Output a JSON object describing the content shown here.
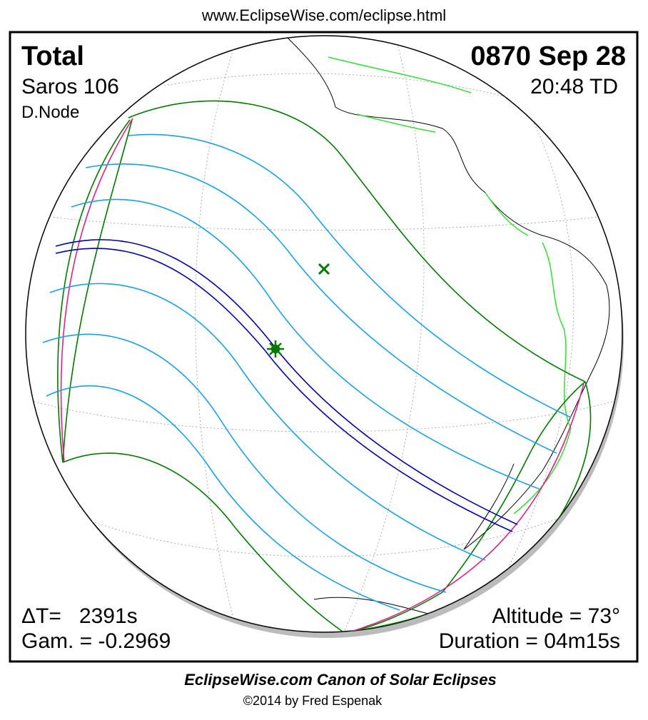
{
  "header": {
    "url": "www.EclipseWise.com/eclipse.html"
  },
  "map": {
    "eclipse_type": "Total",
    "date": "0870 Sep 28",
    "saros": "Saros 106",
    "time": "20:48 TD",
    "node": "D.Node",
    "delta_t": "ΔT=   2391s",
    "gamma": "Gam. = -0.2969",
    "altitude": "Altitude = 73°",
    "duration": "Duration = 04m15s"
  },
  "footer": {
    "title": "EclipseWise.com Canon of Solar Eclipses",
    "copyright": "©2014 by Fred Espenak"
  }
}
